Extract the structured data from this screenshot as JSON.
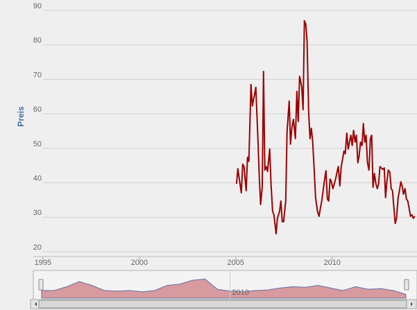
{
  "chart_data": [
    {
      "type": "line",
      "y_label": "Preis",
      "x": [
        2005.04,
        2005.11,
        2005.22,
        2005.29,
        2005.36,
        2005.43,
        2005.54,
        2005.61,
        2005.68,
        2005.79,
        2005.86,
        2005.97,
        2006.04,
        2006.15,
        2006.22,
        2006.29,
        2006.37,
        2006.44,
        2006.51,
        2006.58,
        2006.65,
        2006.76,
        2006.83,
        2006.91,
        2006.98,
        2007.09,
        2007.16,
        2007.27,
        2007.34,
        2007.41,
        2007.48,
        2007.59,
        2007.66,
        2007.77,
        2007.84,
        2007.91,
        2007.99,
        2008.09,
        2008.17,
        2008.24,
        2008.31,
        2008.42,
        2008.49,
        2008.56,
        2008.63,
        2008.7,
        2008.78,
        2008.85,
        2008.92,
        2008.99,
        2009.06,
        2009.14,
        2009.24,
        2009.32,
        2009.39,
        2009.46,
        2009.53,
        2009.6,
        2009.68,
        2009.75,
        2009.82,
        2009.89,
        2009.96,
        2010.04,
        2010.11,
        2010.18,
        2010.25,
        2010.32,
        2010.4,
        2010.47,
        2010.54,
        2010.61,
        2010.68,
        2010.76,
        2010.83,
        2010.9,
        2010.97,
        2011.04,
        2011.11,
        2011.19,
        2011.26,
        2011.33,
        2011.4,
        2011.47,
        2011.55,
        2011.62,
        2011.69,
        2011.76,
        2011.83,
        2011.91,
        2011.98,
        2012.05,
        2012.12,
        2012.19,
        2012.27,
        2012.34,
        2012.41,
        2012.48,
        2012.55,
        2012.63,
        2012.7,
        2012.77,
        2012.84,
        2012.91,
        2012.99,
        2013.06,
        2013.13,
        2013.2,
        2013.27,
        2013.34,
        2013.42,
        2013.49,
        2013.56,
        2013.63,
        2013.7,
        2013.78,
        2013.85,
        2013.92,
        2013.99,
        2014.06,
        2014.14,
        2014.21,
        2014.28
      ],
      "series": [
        {
          "color": "#9b0000",
          "values": [
            39.7,
            44.1,
            39.7,
            37.1,
            45.4,
            44.7,
            37.7,
            47.4,
            46.2,
            68.5,
            62.3,
            65.5,
            67.7,
            52.8,
            41.7,
            33.7,
            38.7,
            72.3,
            43.7,
            44.7,
            43.3,
            49.8,
            39.7,
            31.7,
            30.7,
            25.2,
            29.7,
            31.7,
            34.7,
            28.7,
            28.7,
            34.7,
            54.8,
            63.7,
            51.2,
            55.8,
            58.4,
            52.8,
            66.5,
            57.8,
            70.9,
            67.9,
            61.2,
            87.0,
            86.0,
            81.0,
            60.8,
            52.8,
            55.8,
            51.8,
            44.7,
            35.7,
            31.7,
            30.3,
            32.7,
            34.7,
            37.7,
            40.7,
            43.5,
            35.3,
            34.7,
            41.1,
            40.3,
            38.3,
            39.7,
            41.1,
            43.1,
            44.7,
            39.1,
            44.7,
            46.8,
            49.2,
            48.4,
            54.4,
            49.8,
            51.8,
            53.8,
            50.8,
            55.2,
            51.8,
            53.8,
            45.8,
            47.8,
            51.8,
            50.8,
            57.2,
            51.8,
            53.8,
            45.8,
            43.7,
            52.8,
            53.8,
            38.7,
            42.7,
            39.7,
            38.3,
            39.7,
            44.7,
            44.3,
            43.9,
            44.3,
            35.7,
            40.3,
            43.7,
            43.1,
            38.3,
            37.7,
            32.7,
            28.2,
            29.7,
            35.7,
            37.7,
            40.3,
            39.1,
            36.7,
            38.3,
            35.3,
            34.7,
            32.7,
            30.3,
            30.7,
            29.7,
            30.3
          ]
        }
      ],
      "xlim": [
        1994.5,
        2014.4
      ],
      "xticks": [
        1995,
        2000,
        2005,
        2010
      ],
      "ylim": [
        20,
        90
      ],
      "yticks": [
        20,
        30,
        40,
        50,
        60,
        70,
        80,
        90
      ],
      "grid": true
    },
    {
      "type": "area",
      "x": [
        1995,
        1996,
        1997,
        1998,
        1999,
        2000,
        2001,
        2002,
        2003,
        2004,
        2005,
        2006,
        2007,
        2008,
        2009,
        2010,
        2011,
        2012,
        2013,
        2014,
        2015,
        2016,
        2017,
        2018,
        2019,
        2020,
        2021,
        2022,
        2023,
        2024
      ],
      "series": [
        {
          "color": "#c0505a",
          "values": [
            12,
            12,
            18,
            26,
            20,
            12,
            11,
            12,
            10,
            12,
            20,
            22,
            28,
            30,
            14,
            11,
            10,
            12,
            13,
            16,
            18,
            17,
            20,
            16,
            12,
            18,
            14,
            15,
            12,
            6
          ]
        }
      ],
      "xlim": [
        1995,
        2024
      ],
      "xticks": [
        2010
      ],
      "ylim": [
        0,
        40
      ]
    }
  ]
}
